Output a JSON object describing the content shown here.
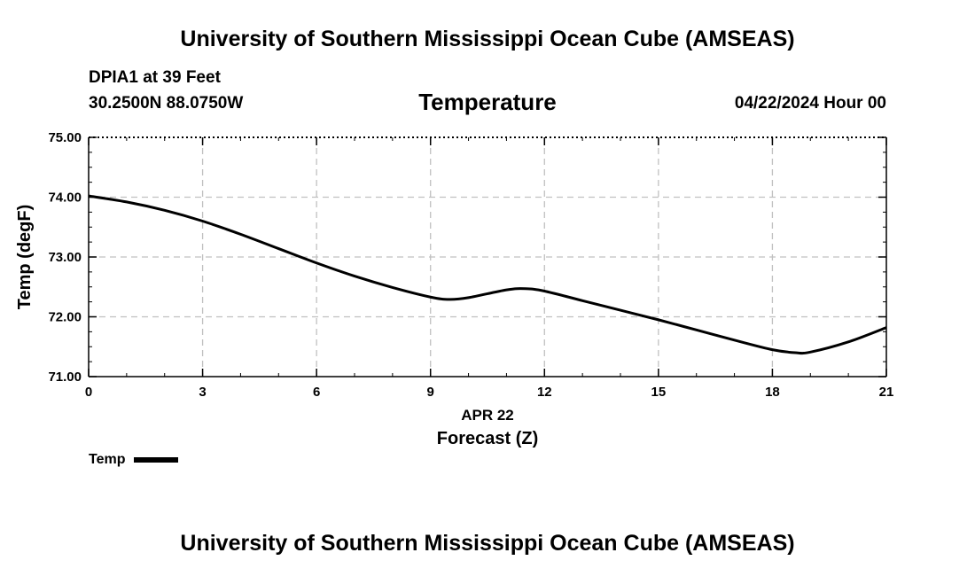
{
  "header": {
    "main_title": "University of Southern Mississippi Ocean Cube (AMSEAS)",
    "station": "DPIA1 at 39 Feet",
    "coords": "30.2500N  88.0750W",
    "variable_title": "Temperature",
    "date": "04/22/2024 Hour 00"
  },
  "footer": {
    "title": "University of Southern Mississippi Ocean Cube (AMSEAS)"
  },
  "legend": {
    "label": "Temp"
  },
  "chart_data": {
    "type": "line",
    "title": "Temperature",
    "xlabel": "Forecast (Z)",
    "date_label": "APR 22",
    "ylabel": "Temp (degF)",
    "xlim": [
      0,
      21
    ],
    "ylim": [
      71,
      75
    ],
    "xticks": [
      0,
      3,
      6,
      9,
      12,
      15,
      18,
      21
    ],
    "yticks": [
      71,
      72,
      73,
      74,
      75
    ],
    "ytick_labels": [
      "71.00",
      "72.00",
      "73.00",
      "74.00",
      "75.00"
    ],
    "grid": true,
    "series": [
      {
        "name": "Temp",
        "x": [
          0,
          1,
          2,
          3,
          4,
          5,
          6,
          7,
          8,
          9,
          9.5,
          10,
          11,
          11.5,
          12,
          13,
          14,
          15,
          16,
          17,
          18,
          18.6,
          19,
          20,
          21
        ],
        "y": [
          74.02,
          73.92,
          73.78,
          73.6,
          73.38,
          73.14,
          72.9,
          72.68,
          72.49,
          72.33,
          72.29,
          72.32,
          72.45,
          72.47,
          72.43,
          72.27,
          72.11,
          71.95,
          71.78,
          71.61,
          71.45,
          71.4,
          71.41,
          71.58,
          71.82
        ]
      }
    ]
  }
}
